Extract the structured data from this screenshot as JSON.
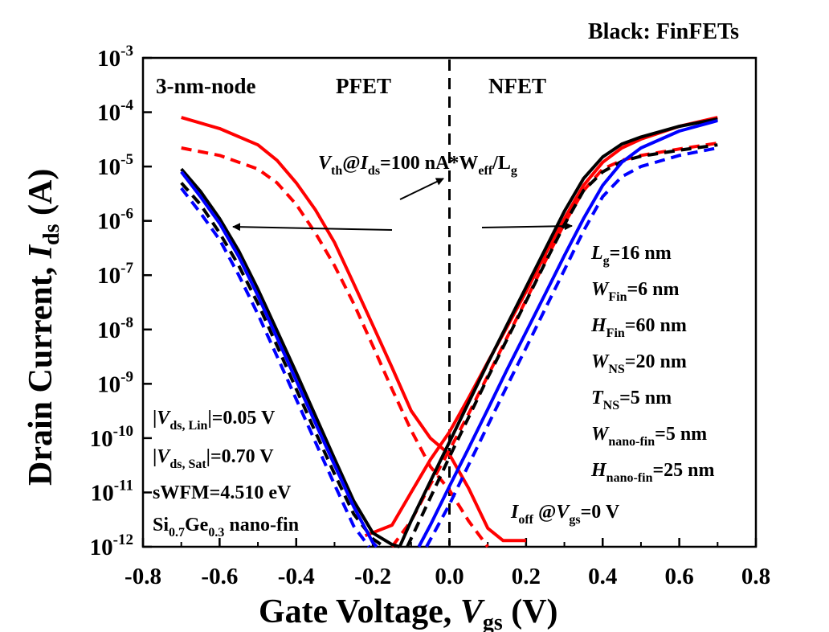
{
  "chart_data": {
    "type": "line",
    "scale": {
      "y": "log10"
    },
    "xlim": [
      -0.8,
      0.8
    ],
    "ylim": [
      1e-12,
      0.001
    ],
    "xticks": [
      -0.8,
      -0.6,
      -0.4,
      -0.2,
      0.0,
      0.2,
      0.4,
      0.6,
      0.8
    ],
    "xtick_labels": [
      "-0.8",
      "-0.6",
      "-0.4",
      "-0.2",
      "0.0",
      "0.2",
      "0.4",
      "0.6",
      "0.8"
    ],
    "ytick_labels": [
      {
        "base": "10",
        "exp": "-3"
      },
      {
        "base": "10",
        "exp": "-4"
      },
      {
        "base": "10",
        "exp": "-5"
      },
      {
        "base": "10",
        "exp": "-6"
      },
      {
        "base": "10",
        "exp": "-7"
      },
      {
        "base": "10",
        "exp": "-8"
      },
      {
        "base": "10",
        "exp": "-9"
      },
      {
        "base": "10",
        "exp": "-10"
      },
      {
        "base": "10",
        "exp": "-11"
      },
      {
        "base": "10",
        "exp": "-12"
      }
    ],
    "xlabel": {
      "main": "Gate Voltage, ",
      "var": "V",
      "sub": "gs",
      "unit": " (V)"
    },
    "ylabel": {
      "main": "Drain Current, ",
      "var": "I",
      "sub": "ds",
      "unit": " (A)"
    },
    "top_legend": "Black: FinFETs",
    "region_labels": {
      "node": "3-nm-node",
      "pfet": "PFET",
      "nfet": "NFET"
    },
    "vth_label": {
      "v": "V",
      "v_sub": "th",
      "mid": "@",
      "i": "I",
      "i_sub": "ds",
      "rest": "=100 nA*W",
      "w_sub": "eff",
      "slash": "/L",
      "l_sub": "g"
    },
    "ioff_label": {
      "i": "I",
      "i_sub": "off",
      "mid": " @",
      "v": "V",
      "v_sub": "gs",
      "rest": "=0 V"
    },
    "params": [
      {
        "var": "L",
        "sub": "g",
        "val": "=16 nm"
      },
      {
        "var": "W",
        "sub": "Fin",
        "val": "=6 nm"
      },
      {
        "var": "H",
        "sub": "Fin",
        "val": "=60 nm"
      },
      {
        "var": "W",
        "sub": "NS",
        "val": "=20 nm"
      },
      {
        "var": "T",
        "sub": "NS",
        "val": "=5 nm"
      },
      {
        "var": "W",
        "sub": "nano-fin",
        "val": "=5 nm"
      },
      {
        "var": "H",
        "sub": "nano-fin",
        "val": "=25 nm"
      }
    ],
    "conditions": [
      {
        "pre": "|",
        "var": "V",
        "sub": "ds, Lin",
        "post": "|=0.05 V"
      },
      {
        "pre": "|",
        "var": "V",
        "sub": "ds, Sat",
        "post": "|=0.70 V"
      },
      {
        "text": "sWFM=4.510 eV"
      },
      {
        "material": [
          "Si",
          "0.7",
          "Ge",
          "0.3",
          " nano-fin"
        ]
      }
    ],
    "colors": {
      "black": "#000000",
      "red": "#ff0000",
      "blue": "#0000ff"
    },
    "series": [
      {
        "color": "black",
        "dash": false,
        "x": [
          -0.7,
          -0.65,
          -0.6,
          -0.55,
          -0.5,
          -0.45,
          -0.4,
          -0.35,
          -0.3,
          -0.25,
          -0.2,
          -0.15,
          -0.13
        ],
        "y": [
          9e-06,
          3.5e-06,
          1.1e-06,
          2.8e-07,
          5.5e-08,
          9.5e-09,
          1.6e-09,
          2.6e-10,
          4.2e-11,
          7e-12,
          1.8e-12,
          1.1e-12,
          1e-12
        ]
      },
      {
        "color": "black",
        "dash": true,
        "x": [
          -0.7,
          -0.65,
          -0.6,
          -0.55,
          -0.5,
          -0.45,
          -0.4,
          -0.35,
          -0.3,
          -0.25,
          -0.2,
          -0.17
        ],
        "y": [
          5e-06,
          2e-06,
          6e-07,
          1.5e-07,
          3e-08,
          5e-09,
          8e-10,
          1.3e-10,
          2.2e-11,
          4e-12,
          1.4e-12,
          1e-12
        ]
      },
      {
        "color": "blue",
        "dash": false,
        "x": [
          -0.7,
          -0.65,
          -0.6,
          -0.55,
          -0.5,
          -0.45,
          -0.4,
          -0.35,
          -0.3,
          -0.25,
          -0.2,
          -0.19
        ],
        "y": [
          8e-06,
          2.8e-06,
          9e-07,
          2.2e-07,
          4.2e-08,
          7e-09,
          1.15e-09,
          1.9e-10,
          3.2e-11,
          5.5e-12,
          1.2e-12,
          1e-12
        ]
      },
      {
        "color": "blue",
        "dash": true,
        "x": [
          -0.7,
          -0.65,
          -0.6,
          -0.55,
          -0.5,
          -0.45,
          -0.4,
          -0.35,
          -0.3,
          -0.25,
          -0.21
        ],
        "y": [
          4e-06,
          1.4e-06,
          4.5e-07,
          1e-07,
          1.9e-08,
          3.2e-09,
          5.2e-10,
          8.5e-11,
          1.4e-11,
          2.4e-12,
          1e-12
        ]
      },
      {
        "color": "red",
        "dash": false,
        "x": [
          -0.7,
          -0.6,
          -0.5,
          -0.45,
          -0.4,
          -0.35,
          -0.3,
          -0.25,
          -0.2,
          -0.15,
          -0.1,
          -0.05,
          0.0,
          0.05,
          0.1,
          0.14,
          0.2
        ],
        "y": [
          8e-05,
          5e-05,
          2.5e-05,
          1.3e-05,
          5e-06,
          1.6e-06,
          4e-07,
          7e-08,
          1.2e-08,
          2e-09,
          3.2e-10,
          1e-10,
          5e-11,
          1.2e-11,
          2.2e-12,
          1.3e-12,
          1.3e-12
        ]
      },
      {
        "color": "red",
        "dash": true,
        "x": [
          -0.7,
          -0.6,
          -0.5,
          -0.45,
          -0.4,
          -0.35,
          -0.3,
          -0.25,
          -0.2,
          -0.15,
          -0.1,
          -0.05,
          0.0,
          0.05,
          0.1
        ],
        "y": [
          2.2e-05,
          1.6e-05,
          9e-06,
          5e-06,
          2e-06,
          6e-07,
          1.5e-07,
          3e-08,
          5e-09,
          8e-10,
          1.4e-10,
          3e-11,
          1.1e-11,
          3e-12,
          1e-12
        ]
      },
      {
        "color": "black",
        "dash": false,
        "x": [
          -0.13,
          -0.1,
          -0.05,
          0.0,
          0.05,
          0.1,
          0.15,
          0.2,
          0.25,
          0.3,
          0.35,
          0.4,
          0.45,
          0.5,
          0.6,
          0.7
        ],
        "y": [
          1e-12,
          3e-12,
          1.6e-11,
          8.5e-11,
          4.5e-10,
          2.4e-09,
          1.2e-08,
          6e-08,
          3e-07,
          1.5e-06,
          6e-06,
          1.5e-05,
          2.6e-05,
          3.5e-05,
          5.5e-05,
          7.5e-05
        ]
      },
      {
        "color": "black",
        "dash": true,
        "x": [
          -0.11,
          -0.05,
          0.0,
          0.05,
          0.1,
          0.15,
          0.2,
          0.25,
          0.3,
          0.35,
          0.4,
          0.45,
          0.5,
          0.6,
          0.7
        ],
        "y": [
          1e-12,
          8e-12,
          4.5e-11,
          2.4e-10,
          1.3e-09,
          6.5e-09,
          3.3e-08,
          1.7e-07,
          8.5e-07,
          3.6e-06,
          8e-06,
          1.25e-05,
          1.55e-05,
          2e-05,
          2.5e-05
        ]
      },
      {
        "color": "blue",
        "dash": false,
        "x": [
          -0.08,
          -0.05,
          0.0,
          0.05,
          0.1,
          0.15,
          0.2,
          0.25,
          0.3,
          0.35,
          0.4,
          0.45,
          0.5,
          0.6,
          0.7
        ],
        "y": [
          1e-12,
          2.5e-12,
          1.3e-11,
          6.5e-11,
          3.4e-10,
          1.8e-09,
          9e-09,
          4.5e-08,
          2.3e-07,
          1.1e-06,
          4.5e-06,
          1.2e-05,
          2.2e-05,
          4.5e-05,
          7e-05
        ]
      },
      {
        "color": "blue",
        "dash": true,
        "x": [
          -0.06,
          0.0,
          0.05,
          0.1,
          0.15,
          0.2,
          0.25,
          0.3,
          0.35,
          0.4,
          0.45,
          0.5,
          0.6,
          0.7
        ],
        "y": [
          1e-12,
          6e-12,
          3.2e-11,
          1.7e-10,
          9e-10,
          4.6e-09,
          2.4e-08,
          1.25e-07,
          6.5e-07,
          2.8e-06,
          6.5e-06,
          1e-05,
          1.6e-05,
          2.2e-05
        ]
      },
      {
        "color": "red",
        "dash": false,
        "x": [
          -0.22,
          -0.15,
          -0.1,
          -0.05,
          0.0,
          0.05,
          0.1,
          0.15,
          0.2,
          0.25,
          0.3,
          0.35,
          0.4,
          0.45,
          0.5,
          0.6,
          0.7
        ],
        "y": [
          1.6e-12,
          2.5e-12,
          1e-11,
          4e-11,
          1.3e-10,
          5.5e-10,
          2.5e-09,
          1.1e-08,
          5e-08,
          2.4e-07,
          1.1e-06,
          4.5e-06,
          1.2e-05,
          2.2e-05,
          3.2e-05,
          5.5e-05,
          8e-05
        ]
      },
      {
        "color": "red",
        "dash": true,
        "x": [
          -0.15,
          -0.1,
          -0.05,
          0.0,
          0.05,
          0.1,
          0.15,
          0.2,
          0.25,
          0.3,
          0.35,
          0.4,
          0.45,
          0.5,
          0.6,
          0.7
        ],
        "y": [
          1e-12,
          3e-12,
          1.4e-11,
          6e-11,
          2.8e-10,
          1.4e-09,
          7e-09,
          3.5e-08,
          1.8e-07,
          9e-07,
          3.6e-06,
          9e-06,
          1.3e-05,
          1.6e-05,
          2.1e-05,
          2.7e-05
        ]
      }
    ]
  }
}
